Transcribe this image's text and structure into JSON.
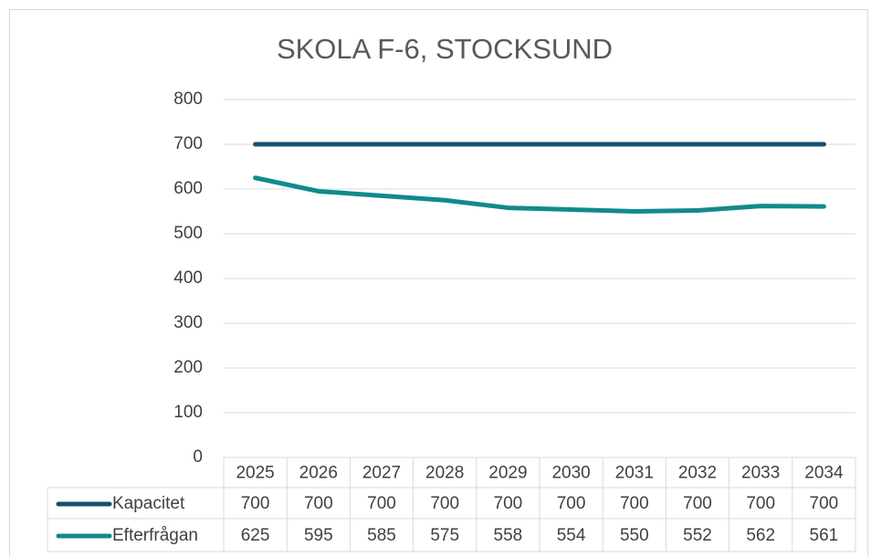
{
  "chart_data": {
    "type": "line",
    "title": "SKOLA F-6, STOCKSUND",
    "categories": [
      "2025",
      "2026",
      "2027",
      "2028",
      "2029",
      "2030",
      "2031",
      "2032",
      "2033",
      "2034"
    ],
    "series": [
      {
        "name": "Kapacitet",
        "color": "#16506e",
        "values": [
          700,
          700,
          700,
          700,
          700,
          700,
          700,
          700,
          700,
          700
        ]
      },
      {
        "name": "Efterfrågan",
        "color": "#118a8b",
        "values": [
          625,
          595,
          585,
          575,
          558,
          554,
          550,
          552,
          562,
          561
        ]
      }
    ],
    "ylim": [
      0,
      800
    ],
    "yticks": [
      0,
      100,
      200,
      300,
      400,
      500,
      600,
      700,
      800
    ],
    "grid": true,
    "data_table": true
  }
}
